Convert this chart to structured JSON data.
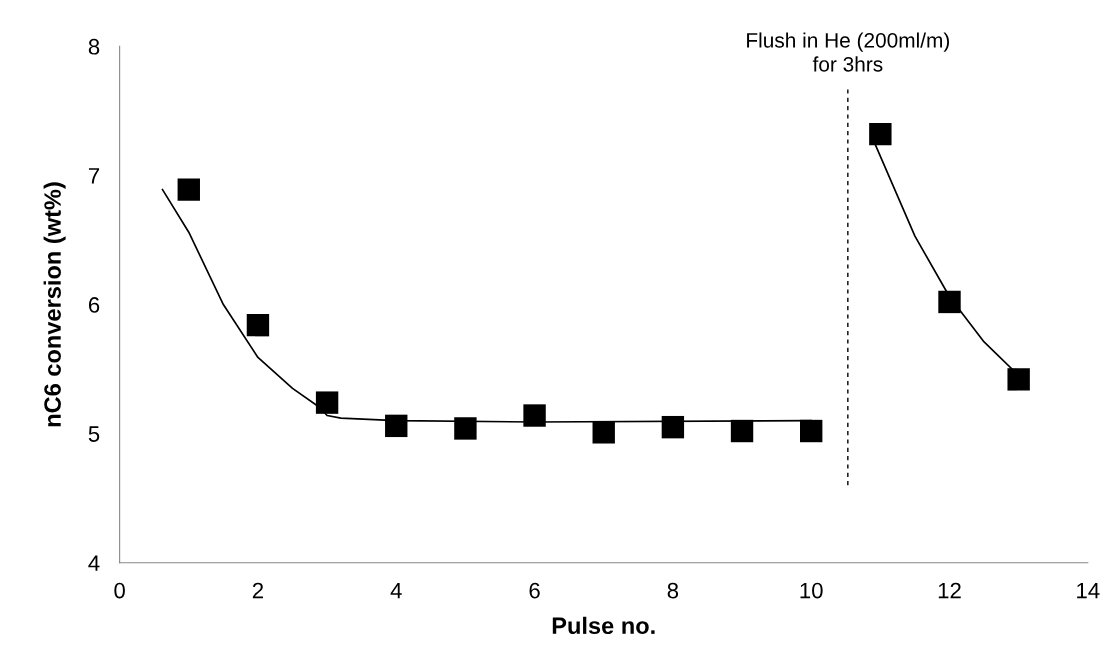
{
  "chart_data": {
    "type": "scatter",
    "xlabel": "Pulse no.",
    "ylabel": "nC6 conversion (wt%)",
    "xlim": [
      0,
      14
    ],
    "xticks": [
      0,
      2,
      4,
      6,
      8,
      10,
      12,
      14
    ],
    "ylim": [
      4,
      8
    ],
    "yticks": [
      4,
      5,
      6,
      7,
      8
    ],
    "grid": false,
    "legend": false,
    "marker": "square",
    "series": [
      {
        "color": "#000000",
        "x": [
          1,
          2,
          3,
          4,
          5,
          6,
          7,
          8,
          9,
          10,
          11,
          12,
          13
        ],
        "values": [
          6.89,
          5.84,
          5.24,
          5.06,
          5.04,
          5.14,
          5.01,
          5.05,
          5.02,
          5.02,
          7.32,
          6.02,
          5.42
        ]
      },
      {
        "type": "line",
        "color": "#000000",
        "marker": "none",
        "x": [
          0.62,
          1,
          1.5,
          2,
          2.5,
          2.9,
          3.0,
          3.2,
          4,
          6,
          10
        ],
        "values": [
          6.89,
          6.56,
          6.0,
          5.59,
          5.35,
          5.2,
          5.14,
          5.12,
          5.1,
          5.09,
          5.1
        ]
      },
      {
        "type": "line",
        "color": "#000000",
        "marker": "none",
        "x": [
          10.91,
          11.5,
          12,
          12.5,
          13
        ],
        "values": [
          7.26,
          6.53,
          6.06,
          5.71,
          5.45
        ]
      }
    ],
    "ref_lines": [
      {
        "axis": "x",
        "value": 10.53,
        "label": "Flush in He (200ml/m)\nfor 3hrs",
        "color": "#000000",
        "line_style": "dashed"
      }
    ]
  }
}
